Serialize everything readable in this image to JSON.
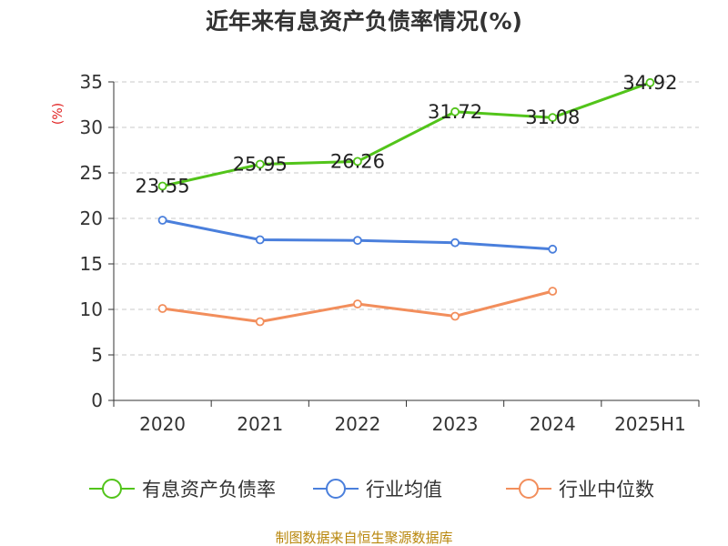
{
  "chart_data": {
    "type": "line",
    "title": "近年来有息资产负债率情况(%)",
    "ylabel": "(%)",
    "ylim": [
      0,
      35
    ],
    "yticks": [
      0,
      5,
      10,
      15,
      20,
      25,
      30,
      35
    ],
    "categories": [
      "2020",
      "2021",
      "2022",
      "2023",
      "2024",
      "2025H1"
    ],
    "grid": true,
    "legend_position": "bottom",
    "series": [
      {
        "name": "有息资产负债率",
        "color": "#52c41a",
        "values": [
          23.55,
          25.95,
          26.26,
          31.72,
          31.08,
          34.92
        ],
        "labels": [
          "23.55",
          "25.95",
          "26.26",
          "31.72",
          "31.08",
          "34.92"
        ]
      },
      {
        "name": "行业均值",
        "color": "#4a7fdc",
        "values": [
          19.8,
          17.65,
          17.58,
          17.33,
          16.62,
          null
        ]
      },
      {
        "name": "行业中位数",
        "color": "#f28e5c",
        "values": [
          10.1,
          8.65,
          10.6,
          9.25,
          12.0,
          null
        ]
      }
    ],
    "source": "制图数据来自恒生聚源数据库"
  }
}
